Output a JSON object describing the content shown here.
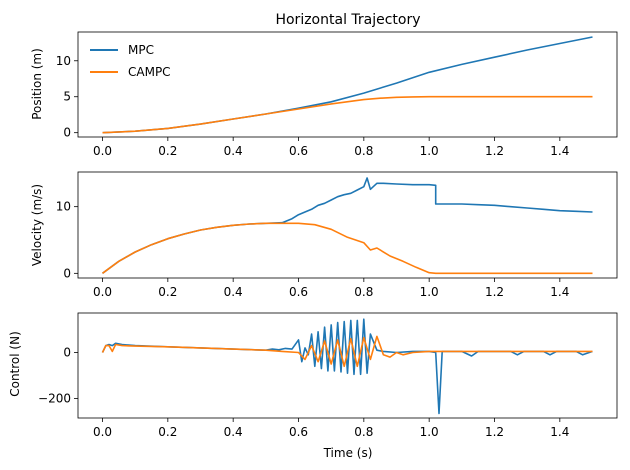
{
  "chart_data": [
    {
      "type": "line",
      "title": "Horizontal Trajectory",
      "xlabel": "",
      "ylabel": "Position (m)",
      "xlim": [
        -0.075,
        1.575
      ],
      "ylim": [
        -0.6,
        14.0
      ],
      "xticks": [
        "0.0",
        "0.2",
        "0.4",
        "0.6",
        "0.8",
        "1.0",
        "1.2",
        "1.4"
      ],
      "yticks": [
        {
          "value": 0,
          "label": "0"
        },
        {
          "value": 5,
          "label": "5"
        },
        {
          "value": 10,
          "label": "10"
        }
      ],
      "legend": {
        "placement": "top-left"
      },
      "series": [
        {
          "name": "MPC",
          "color": "#1f77b4",
          "x": [
            0.0,
            0.1,
            0.2,
            0.3,
            0.4,
            0.5,
            0.6,
            0.7,
            0.8,
            0.9,
            1.0,
            1.1,
            1.2,
            1.3,
            1.4,
            1.5
          ],
          "y": [
            0.0,
            0.2,
            0.6,
            1.2,
            1.9,
            2.6,
            3.4,
            4.3,
            5.5,
            6.9,
            8.4,
            9.5,
            10.5,
            11.5,
            12.4,
            13.3
          ]
        },
        {
          "name": "CAMPC",
          "color": "#ff7f0e",
          "x": [
            0.0,
            0.1,
            0.2,
            0.3,
            0.4,
            0.5,
            0.6,
            0.7,
            0.8,
            0.85,
            0.9,
            0.95,
            1.0,
            1.1,
            1.2,
            1.3,
            1.4,
            1.5
          ],
          "y": [
            0.0,
            0.2,
            0.6,
            1.2,
            1.9,
            2.6,
            3.3,
            4.0,
            4.6,
            4.8,
            4.92,
            4.97,
            5.0,
            5.0,
            5.0,
            5.0,
            5.0,
            5.0
          ]
        }
      ]
    },
    {
      "type": "line",
      "title": "",
      "xlabel": "",
      "ylabel": "Velocity (m/s)",
      "xlim": [
        -0.075,
        1.575
      ],
      "ylim": [
        -0.7,
        15.2
      ],
      "xticks": [
        "0.0",
        "0.2",
        "0.4",
        "0.6",
        "0.8",
        "1.0",
        "1.2",
        "1.4"
      ],
      "yticks": [
        {
          "value": 0,
          "label": "0"
        },
        {
          "value": 10,
          "label": "10"
        }
      ],
      "series": [
        {
          "name": "MPC",
          "color": "#1f77b4",
          "x": [
            0.0,
            0.05,
            0.1,
            0.15,
            0.2,
            0.25,
            0.3,
            0.35,
            0.4,
            0.45,
            0.5,
            0.55,
            0.58,
            0.6,
            0.62,
            0.64,
            0.66,
            0.68,
            0.7,
            0.72,
            0.74,
            0.76,
            0.78,
            0.8,
            0.81,
            0.82,
            0.84,
            0.86,
            0.9,
            0.95,
            1.0,
            1.02,
            1.02,
            1.1,
            1.15,
            1.2,
            1.25,
            1.3,
            1.35,
            1.4,
            1.45,
            1.5
          ],
          "y": [
            0.0,
            1.8,
            3.2,
            4.3,
            5.2,
            5.9,
            6.5,
            6.9,
            7.2,
            7.4,
            7.5,
            7.6,
            8.2,
            8.8,
            9.2,
            9.6,
            10.2,
            10.5,
            11.0,
            11.5,
            11.8,
            12.0,
            12.5,
            13.0,
            14.3,
            12.6,
            13.5,
            13.5,
            13.4,
            13.3,
            13.3,
            13.2,
            10.4,
            10.4,
            10.3,
            10.2,
            10.0,
            9.8,
            9.6,
            9.4,
            9.3,
            9.2
          ]
        },
        {
          "name": "CAMPC",
          "color": "#ff7f0e",
          "x": [
            0.0,
            0.05,
            0.1,
            0.15,
            0.2,
            0.25,
            0.3,
            0.35,
            0.4,
            0.45,
            0.5,
            0.55,
            0.6,
            0.65,
            0.7,
            0.75,
            0.8,
            0.82,
            0.84,
            0.88,
            0.92,
            0.96,
            1.0,
            1.02,
            1.1,
            1.2,
            1.3,
            1.4,
            1.5
          ],
          "y": [
            0.0,
            1.8,
            3.2,
            4.3,
            5.2,
            5.9,
            6.5,
            6.9,
            7.2,
            7.4,
            7.5,
            7.5,
            7.5,
            7.3,
            6.6,
            5.4,
            4.6,
            3.5,
            3.8,
            2.6,
            1.8,
            0.9,
            0.1,
            0.0,
            0.0,
            0.0,
            0.0,
            0.0,
            0.0
          ]
        }
      ]
    },
    {
      "type": "line",
      "title": "",
      "xlabel": "Time (s)",
      "ylabel": "Control (N)",
      "xlim": [
        -0.075,
        1.575
      ],
      "ylim": [
        -285,
        172
      ],
      "xticks": [
        "0.0",
        "0.2",
        "0.4",
        "0.6",
        "0.8",
        "1.0",
        "1.2",
        "1.4"
      ],
      "yticks": [
        {
          "value": -200,
          "label": "−200"
        },
        {
          "value": 0,
          "label": "0"
        }
      ],
      "series": [
        {
          "name": "MPC",
          "color": "#1f77b4",
          "x": [
            0.0,
            0.01,
            0.02,
            0.03,
            0.04,
            0.06,
            0.1,
            0.2,
            0.3,
            0.4,
            0.5,
            0.52,
            0.54,
            0.56,
            0.58,
            0.6,
            0.61,
            0.62,
            0.63,
            0.64,
            0.65,
            0.66,
            0.67,
            0.68,
            0.69,
            0.7,
            0.71,
            0.72,
            0.73,
            0.74,
            0.75,
            0.76,
            0.77,
            0.78,
            0.79,
            0.8,
            0.81,
            0.82,
            0.84,
            0.86,
            0.9,
            0.95,
            1.0,
            1.02,
            1.03,
            1.04,
            1.06,
            1.1,
            1.13,
            1.15,
            1.17,
            1.2,
            1.25,
            1.27,
            1.29,
            1.35,
            1.37,
            1.39,
            1.45,
            1.47,
            1.5
          ],
          "y": [
            0,
            30,
            35,
            30,
            40,
            35,
            30,
            25,
            20,
            15,
            10,
            15,
            12,
            18,
            15,
            55,
            -40,
            20,
            -10,
            80,
            -60,
            90,
            -70,
            110,
            -80,
            120,
            -80,
            130,
            -85,
            135,
            -90,
            140,
            -95,
            140,
            -95,
            145,
            -90,
            80,
            10,
            5,
            0,
            5,
            5,
            0,
            -265,
            5,
            5,
            5,
            -15,
            5,
            5,
            5,
            5,
            -10,
            5,
            5,
            -10,
            5,
            5,
            -10,
            5
          ]
        },
        {
          "name": "CAMPC",
          "color": "#ff7f0e",
          "x": [
            0.0,
            0.01,
            0.02,
            0.03,
            0.04,
            0.06,
            0.1,
            0.2,
            0.3,
            0.4,
            0.5,
            0.55,
            0.6,
            0.62,
            0.64,
            0.66,
            0.68,
            0.7,
            0.72,
            0.74,
            0.76,
            0.78,
            0.8,
            0.82,
            0.84,
            0.86,
            0.88,
            0.9,
            0.92,
            0.95,
            1.0,
            1.05,
            1.1,
            1.2,
            1.3,
            1.4,
            1.5
          ],
          "y": [
            0,
            30,
            30,
            5,
            35,
            30,
            28,
            25,
            20,
            15,
            10,
            5,
            0,
            -30,
            30,
            -40,
            50,
            -50,
            55,
            -60,
            60,
            -60,
            65,
            -30,
            70,
            -10,
            -20,
            0,
            -10,
            0,
            5,
            5,
            5,
            5,
            5,
            5,
            5
          ]
        }
      ]
    }
  ]
}
